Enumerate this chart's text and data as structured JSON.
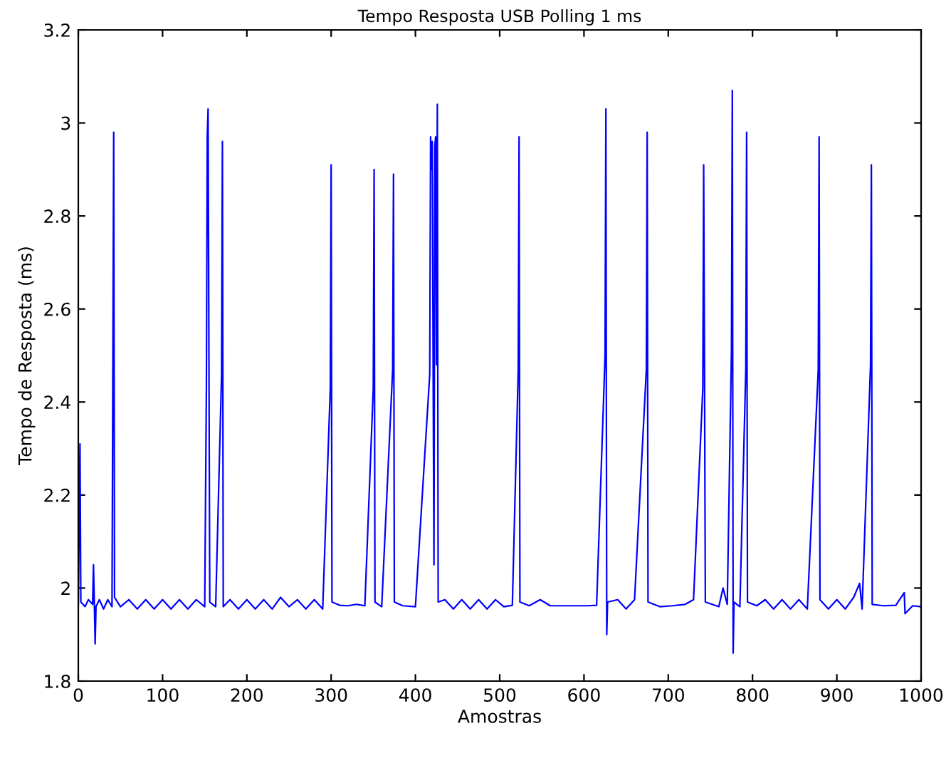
{
  "chart_data": {
    "type": "line",
    "title": "Tempo Resposta USB Polling 1 ms",
    "xlabel": "Amostras",
    "ylabel": "Tempo de Resposta (ms)",
    "xlim": [
      0,
      1000
    ],
    "ylim": [
      1.8,
      3.2
    ],
    "xticks": [
      0,
      100,
      200,
      300,
      400,
      500,
      600,
      700,
      800,
      900,
      1000
    ],
    "yticks": [
      1.8,
      2,
      2.2,
      2.4,
      2.6,
      2.8,
      3,
      3.2
    ],
    "grid": false,
    "legend": false,
    "marker": "none",
    "line_style": "solid",
    "series": [
      {
        "color": "#0000ff",
        "x": [
          0,
          2,
          3,
          8,
          12,
          17,
          18,
          19,
          20,
          21,
          25,
          30,
          35,
          40,
          41,
          42,
          43,
          50,
          60,
          70,
          80,
          90,
          100,
          110,
          120,
          130,
          140,
          150,
          152,
          153,
          154,
          155,
          156,
          163,
          170,
          171,
          172,
          180,
          190,
          200,
          210,
          220,
          230,
          240,
          250,
          260,
          270,
          280,
          290,
          299,
          300,
          301,
          310,
          320,
          330,
          340,
          350,
          351,
          352,
          360,
          373,
          374,
          375,
          385,
          400,
          417,
          418,
          419,
          420,
          421,
          422,
          423,
          424,
          425,
          426,
          427,
          435,
          445,
          455,
          465,
          475,
          485,
          495,
          505,
          515,
          522,
          523,
          524,
          535,
          548,
          560,
          575,
          590,
          605,
          615,
          625,
          626,
          627,
          628,
          640,
          650,
          660,
          674,
          675,
          676,
          690,
          705,
          720,
          730,
          741,
          742,
          743,
          744,
          760,
          765,
          770,
          775,
          776,
          777,
          778,
          785,
          792,
          793,
          794,
          805,
          815,
          825,
          835,
          845,
          855,
          865,
          878,
          879,
          880,
          890,
          900,
          910,
          920,
          927,
          930,
          940,
          941,
          942,
          955,
          970,
          980,
          981,
          990,
          1000
        ],
        "values": [
          1.96,
          2.31,
          1.97,
          1.96,
          1.975,
          1.965,
          2.05,
          1.97,
          1.88,
          1.96,
          1.975,
          1.955,
          1.975,
          1.96,
          2.47,
          2.98,
          1.98,
          1.96,
          1.975,
          1.955,
          1.975,
          1.955,
          1.975,
          1.955,
          1.975,
          1.955,
          1.975,
          1.96,
          2.43,
          2.97,
          3.03,
          2.49,
          1.97,
          1.96,
          2.46,
          2.96,
          1.96,
          1.975,
          1.955,
          1.975,
          1.955,
          1.975,
          1.955,
          1.98,
          1.96,
          1.975,
          1.955,
          1.975,
          1.955,
          2.43,
          2.91,
          1.97,
          1.963,
          1.962,
          1.965,
          1.962,
          2.43,
          2.9,
          1.97,
          1.96,
          2.47,
          2.89,
          1.97,
          1.962,
          1.96,
          2.46,
          2.97,
          2.9,
          2.96,
          2.48,
          2.05,
          2.95,
          2.97,
          2.48,
          3.04,
          1.97,
          1.975,
          1.955,
          1.975,
          1.955,
          1.975,
          1.955,
          1.975,
          1.96,
          1.963,
          2.47,
          2.97,
          1.97,
          1.962,
          1.975,
          1.962,
          1.962,
          1.962,
          1.962,
          1.963,
          2.5,
          3.03,
          1.9,
          1.97,
          1.975,
          1.955,
          1.975,
          2.47,
          2.98,
          1.97,
          1.96,
          1.962,
          1.965,
          1.975,
          2.43,
          2.91,
          2.48,
          1.97,
          1.96,
          2.0,
          1.965,
          2.51,
          3.07,
          1.86,
          1.97,
          1.96,
          2.47,
          2.98,
          1.97,
          1.962,
          1.975,
          1.955,
          1.975,
          1.955,
          1.975,
          1.955,
          2.47,
          2.97,
          1.975,
          1.955,
          1.975,
          1.955,
          1.98,
          2.01,
          1.955,
          2.48,
          2.91,
          1.965,
          1.962,
          1.963,
          1.99,
          1.945,
          1.962,
          1.96
        ]
      }
    ]
  }
}
